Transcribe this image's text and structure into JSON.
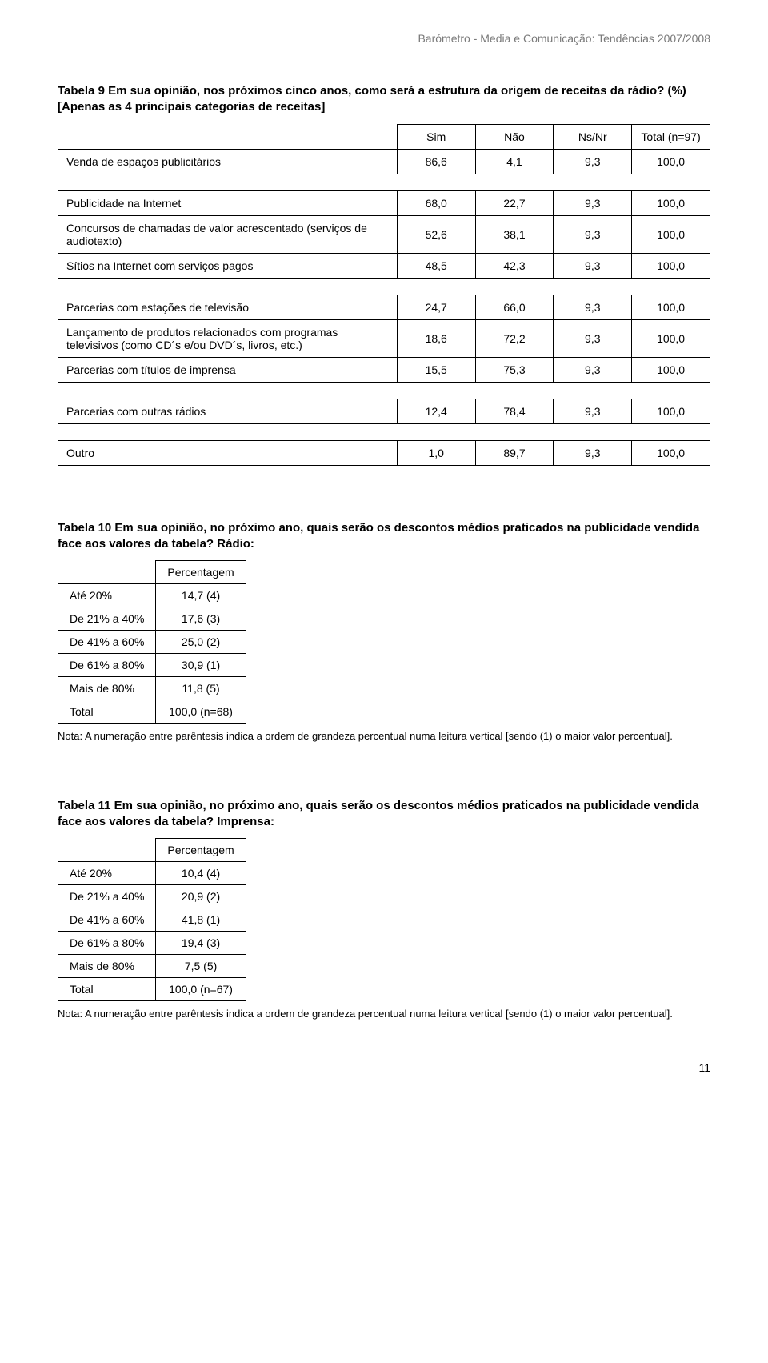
{
  "header": "Barómetro - Media e Comunicação: Tendências 2007/2008",
  "page_number": "11",
  "table9": {
    "title": "Tabela 9 Em sua opinião, nos próximos cinco anos, como será a estrutura da origem de receitas da rádio? (%) [Apenas as 4 principais categorias de receitas]",
    "columns": [
      "Sim",
      "Não",
      "Ns/Nr",
      "Total (n=97)"
    ],
    "groups": [
      [
        {
          "label": "Venda de espaços publicitários",
          "values": [
            "86,6",
            "4,1",
            "9,3",
            "100,0"
          ]
        }
      ],
      [
        {
          "label": "Publicidade na Internet",
          "values": [
            "68,0",
            "22,7",
            "9,3",
            "100,0"
          ]
        },
        {
          "label": "Concursos de chamadas de valor acrescentado (serviços de audiotexto)",
          "values": [
            "52,6",
            "38,1",
            "9,3",
            "100,0"
          ]
        },
        {
          "label": "Sítios na Internet com serviços pagos",
          "values": [
            "48,5",
            "42,3",
            "9,3",
            "100,0"
          ]
        }
      ],
      [
        {
          "label": "Parcerias com estações de televisão",
          "values": [
            "24,7",
            "66,0",
            "9,3",
            "100,0"
          ]
        },
        {
          "label": "Lançamento de produtos relacionados com programas televisivos (como CD´s e/ou DVD´s, livros, etc.)",
          "values": [
            "18,6",
            "72,2",
            "9,3",
            "100,0"
          ]
        },
        {
          "label": "Parcerias com títulos de imprensa",
          "values": [
            "15,5",
            "75,3",
            "9,3",
            "100,0"
          ]
        }
      ],
      [
        {
          "label": "Parcerias com outras rádios",
          "values": [
            "12,4",
            "78,4",
            "9,3",
            "100,0"
          ]
        }
      ],
      [
        {
          "label": "Outro",
          "values": [
            "1,0",
            "89,7",
            "9,3",
            "100,0"
          ]
        }
      ]
    ]
  },
  "table10": {
    "title": "Tabela 10 Em sua opinião, no próximo ano, quais serão os descontos médios praticados na publicidade vendida face aos valores da tabela? Rádio:",
    "col_header": "Percentagem",
    "rows": [
      {
        "label": "Até 20%",
        "value": "14,7 (4)"
      },
      {
        "label": "De 21% a 40%",
        "value": "17,6 (3)"
      },
      {
        "label": "De 41% a 60%",
        "value": "25,0 (2)"
      },
      {
        "label": "De 61% a 80%",
        "value": "30,9 (1)"
      },
      {
        "label": "Mais de 80%",
        "value": "11,8 (5)"
      },
      {
        "label": "Total",
        "value": "100,0 (n=68)"
      }
    ],
    "note": "Nota: A numeração entre parêntesis indica a ordem de grandeza percentual numa leitura vertical [sendo (1) o maior valor percentual]."
  },
  "table11": {
    "title": "Tabela 11 Em sua opinião, no próximo ano, quais serão os descontos médios praticados na publicidade vendida face aos valores da tabela? Imprensa:",
    "col_header": "Percentagem",
    "rows": [
      {
        "label": "Até 20%",
        "value": "10,4 (4)"
      },
      {
        "label": "De 21% a 40%",
        "value": "20,9 (2)"
      },
      {
        "label": "De 41% a 60%",
        "value": "41,8 (1)"
      },
      {
        "label": "De 61% a 80%",
        "value": "19,4 (3)"
      },
      {
        "label": "Mais de 80%",
        "value": "7,5 (5)"
      },
      {
        "label": "Total",
        "value": "100,0 (n=67)"
      }
    ],
    "note": "Nota: A numeração entre parêntesis indica a ordem de grandeza percentual numa leitura vertical [sendo (1) o maior valor percentual]."
  }
}
